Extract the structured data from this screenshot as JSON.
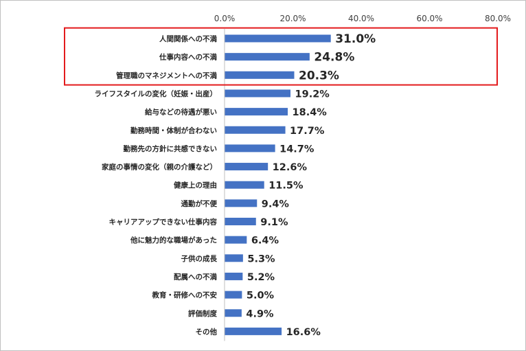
{
  "chart_data": {
    "type": "bar",
    "orientation": "horizontal",
    "title": "",
    "xlabel": "",
    "ylabel": "",
    "xlim": [
      0,
      80
    ],
    "x_ticks": [
      "0.0%",
      "20.0%",
      "40.0%",
      "60.0%",
      "80.0%"
    ],
    "x_tick_values": [
      0,
      20,
      40,
      60,
      80
    ],
    "axis_position": "top",
    "grid": false,
    "categories": [
      "人間関係への不満",
      "仕事内容への不満",
      "管理職のマネジメントへの不満",
      "ライフスタイルの変化（妊娠・出産）",
      "給与などの待遇が悪い",
      "勤務時間・体制が合わない",
      "勤務先の方針に共感できない",
      "家庭の事情の変化（親の介護など）",
      "健康上の理由",
      "通勤が不便",
      "キャリアアップできない仕事内容",
      "他に魅力的な職場があった",
      "子供の成長",
      "配属への不満",
      "教育・研修への不安",
      "評価制度",
      "その他"
    ],
    "values": [
      31.0,
      24.8,
      20.3,
      19.2,
      18.4,
      17.7,
      14.7,
      12.6,
      11.5,
      9.4,
      9.1,
      6.4,
      5.3,
      5.2,
      5.0,
      4.9,
      16.6
    ],
    "value_labels": [
      "31.0%",
      "24.8%",
      "20.3%",
      "19.2%",
      "18.4%",
      "17.7%",
      "14.7%",
      "12.6%",
      "11.5%",
      "9.4%",
      "9.1%",
      "6.4%",
      "5.3%",
      "5.2%",
      "5.0%",
      "4.9%",
      "16.6%"
    ],
    "highlighted_count": 3,
    "colors": {
      "bar": "#4472c4",
      "highlight_box": "#e31a1c",
      "axis": "#bfbfbf",
      "text": "#262626"
    }
  }
}
